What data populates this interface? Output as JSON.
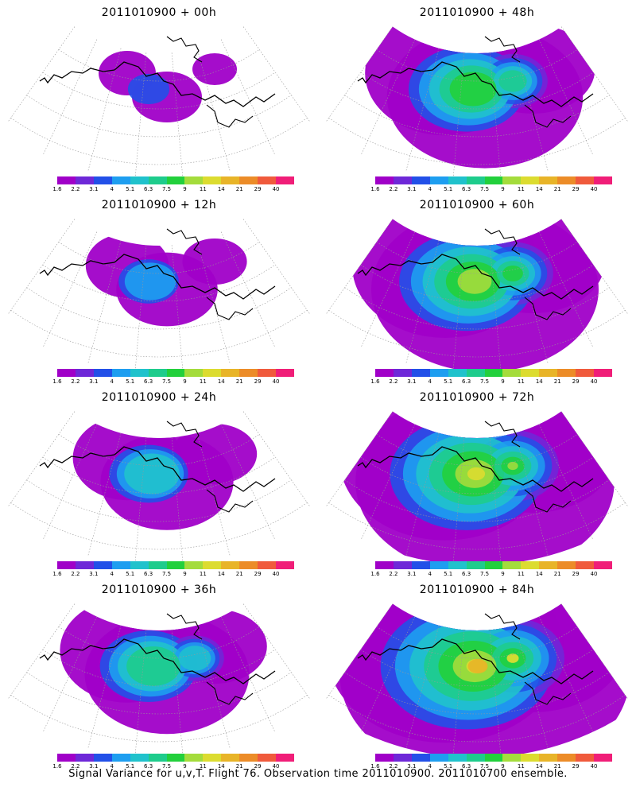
{
  "caption": "Signal Variance for u,v,T. Flight 76. Observation time 2011010900. 2011010700 ensemble.",
  "colorbar": {
    "labels": [
      "1.6",
      "2.2",
      "3.1",
      "4",
      "5.1",
      "6.3",
      "7.5",
      "9",
      "11",
      "14",
      "21",
      "29",
      "40"
    ],
    "colors": [
      "#a000c8",
      "#6e28d8",
      "#2250e8",
      "#1e9ef0",
      "#20c2cc",
      "#1ecc8c",
      "#22d03c",
      "#a4dc3c",
      "#dcdc30",
      "#e8b428",
      "#ec8c28",
      "#f05a3c",
      "#f01e78"
    ]
  },
  "panels": [
    {
      "title": "2011010900 + 00h",
      "intensity": 0
    },
    {
      "title": "2011010900 + 48h",
      "intensity": 4
    },
    {
      "title": "2011010900 + 12h",
      "intensity": 1
    },
    {
      "title": "2011010900 + 60h",
      "intensity": 5
    },
    {
      "title": "2011010900 + 24h",
      "intensity": 2
    },
    {
      "title": "2011010900 + 72h",
      "intensity": 6
    },
    {
      "title": "2011010900 + 36h",
      "intensity": 3
    },
    {
      "title": "2011010900 + 84h",
      "intensity": 7
    }
  ]
}
